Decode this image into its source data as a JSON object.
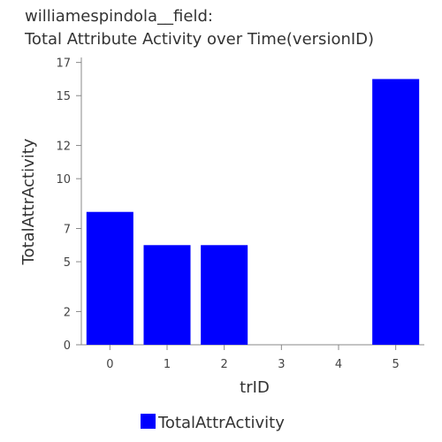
{
  "chart_data": {
    "type": "bar",
    "title_lines": [
      "williamespindola__field:",
      "Total Attribute Activity over Time(versionID)"
    ],
    "xlabel": "trID",
    "ylabel": "TotalAttrActivity",
    "categories": [
      "0",
      "1",
      "2",
      "3",
      "4",
      "5"
    ],
    "series": [
      {
        "name": "TotalAttrActivity",
        "color": "#0000ff",
        "values": [
          8,
          6,
          6,
          0,
          0,
          16
        ]
      }
    ],
    "y_ticks": [
      "0",
      "2",
      "5",
      "7",
      "10",
      "12",
      "15",
      "17"
    ],
    "ylim": [
      0,
      17.3
    ],
    "grid": false,
    "legend_position": "bottom-left"
  }
}
